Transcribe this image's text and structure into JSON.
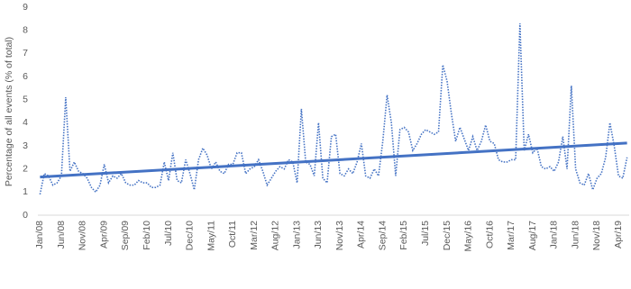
{
  "chart_data": {
    "type": "line",
    "y_label": "Percentage of all events (% of total)",
    "categories": [
      "Jan/08",
      null,
      null,
      null,
      null,
      "Jun/08",
      null,
      null,
      null,
      null,
      "Nov/08",
      null,
      null,
      null,
      null,
      "Apr/09",
      null,
      null,
      null,
      null,
      "Sep/09",
      null,
      null,
      null,
      null,
      "Feb/10",
      null,
      null,
      null,
      null,
      "Jul/10",
      null,
      null,
      null,
      null,
      "Dec/10",
      null,
      null,
      null,
      null,
      "May/11",
      null,
      null,
      null,
      null,
      "Oct/11",
      null,
      null,
      null,
      null,
      "Mar/12",
      null,
      null,
      null,
      null,
      "Aug/12",
      null,
      null,
      null,
      null,
      "Jan/13",
      null,
      null,
      null,
      null,
      "Jun/13",
      null,
      null,
      null,
      null,
      "Nov/13",
      null,
      null,
      null,
      null,
      "Apr/14",
      null,
      null,
      null,
      null,
      "Sep/14",
      null,
      null,
      null,
      null,
      "Feb/15",
      null,
      null,
      null,
      null,
      "Jul/15",
      null,
      null,
      null,
      null,
      "Dec/15",
      null,
      null,
      null,
      null,
      "May/16",
      null,
      null,
      null,
      null,
      "Oct/16",
      null,
      null,
      null,
      null,
      "Mar/17",
      null,
      null,
      null,
      null,
      "Aug/17",
      null,
      null,
      null,
      null,
      "Jan/18",
      null,
      null,
      null,
      null,
      "Jun/18",
      null,
      null,
      null,
      null,
      "Nov/18",
      null,
      null,
      null,
      null,
      "Apr/19",
      null,
      null
    ],
    "series": [
      {
        "color": "#4472c4",
        "values": [
          0.9,
          1.8,
          1.7,
          1.3,
          1.4,
          1.7,
          5.1,
          1.9,
          2.3,
          1.9,
          1.8,
          1.6,
          1.2,
          1.0,
          1.3,
          2.2,
          1.4,
          1.7,
          1.6,
          1.8,
          1.4,
          1.3,
          1.3,
          1.5,
          1.4,
          1.4,
          1.2,
          1.2,
          1.3,
          2.3,
          1.5,
          2.7,
          1.5,
          1.4,
          2.4,
          1.8,
          1.1,
          2.4,
          2.9,
          2.6,
          2.0,
          2.3,
          1.9,
          1.8,
          2.2,
          2.2,
          2.7,
          2.7,
          1.8,
          2.0,
          2.1,
          2.4,
          1.9,
          1.3,
          1.6,
          1.9,
          2.1,
          2.0,
          2.4,
          2.3,
          1.4,
          4.6,
          2.3,
          2.2,
          1.7,
          4.0,
          1.6,
          1.4,
          3.4,
          3.5,
          1.8,
          1.7,
          2.0,
          1.8,
          2.3,
          3.1,
          1.7,
          1.6,
          2.0,
          1.7,
          3.2,
          5.2,
          4.0,
          1.7,
          3.7,
          3.8,
          3.6,
          2.8,
          3.1,
          3.5,
          3.7,
          3.6,
          3.5,
          3.6,
          6.5,
          5.8,
          4.4,
          3.2,
          3.8,
          3.3,
          2.8,
          3.4,
          2.8,
          3.2,
          3.9,
          3.2,
          3.1,
          2.4,
          2.3,
          2.3,
          2.4,
          2.4,
          8.3,
          2.8,
          3.5,
          2.7,
          2.9,
          2.1,
          2.0,
          2.1,
          1.9,
          2.3,
          3.4,
          2.0,
          5.6,
          2.0,
          1.4,
          1.3,
          1.8,
          1.1,
          1.6,
          1.8,
          2.5,
          4.0,
          3.0,
          1.7,
          1.6,
          2.5
        ]
      }
    ],
    "trend_line": {
      "color": "#4472c4",
      "values": [
        1.65,
        3.12
      ]
    },
    "ylim": [
      0,
      9
    ],
    "yticks": [
      0,
      1,
      2,
      3,
      4,
      5,
      6,
      7,
      8,
      9
    ],
    "grid": false
  }
}
